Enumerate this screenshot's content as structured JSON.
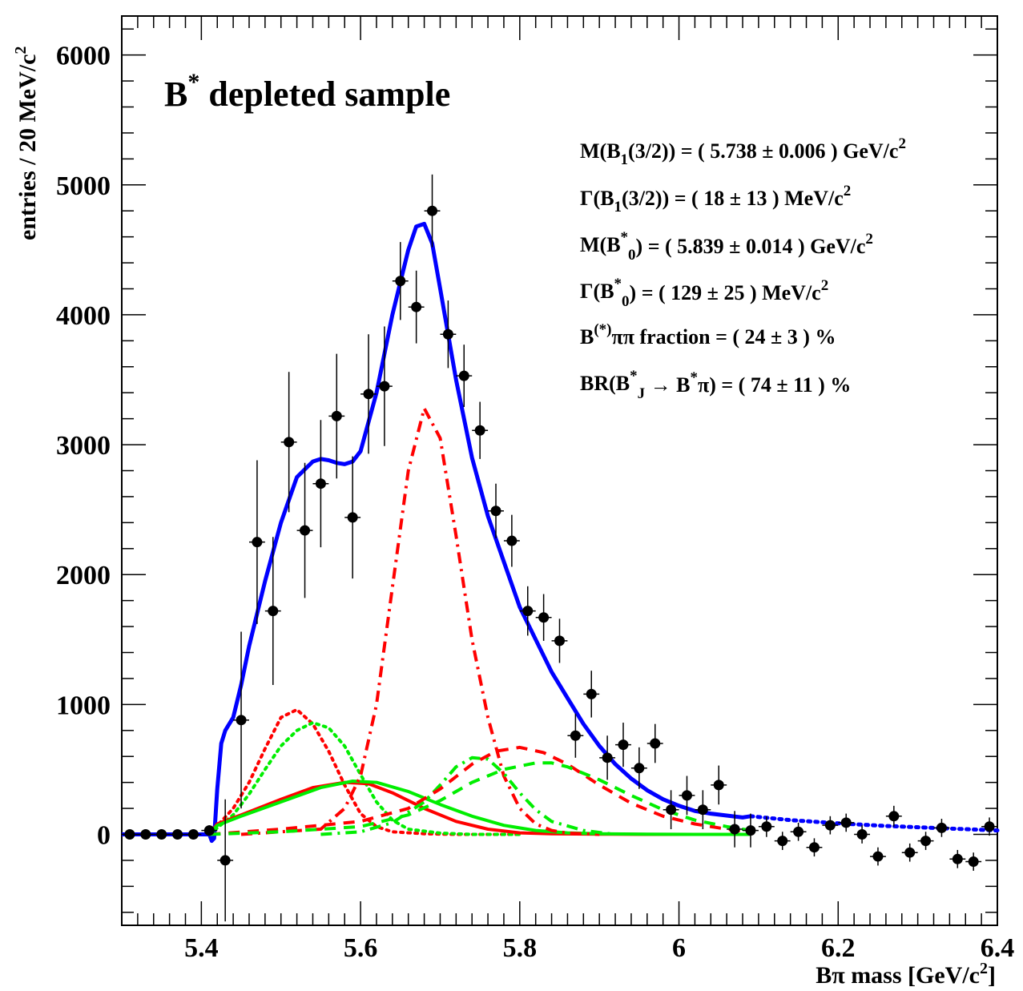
{
  "chart_data": {
    "type": "scatter",
    "title": "B",
    "title_sup": "*",
    "title_rest": " depleted sample",
    "xlabel": "Bπ mass [GeV/c",
    "xlabel_sup": "2",
    "xlabel_end": "]",
    "ylabel": "entries / 20 MeV/c",
    "ylabel_sup": "2",
    "xlim": [
      5.3,
      6.4
    ],
    "ylim": [
      -700,
      6300
    ],
    "x_ticks": [
      5.4,
      5.6,
      5.8,
      6,
      6.2,
      6.4
    ],
    "x_tick_labels": [
      "5.4",
      "5.6",
      "5.8",
      "6",
      "6.2",
      "6.4"
    ],
    "y_ticks": [
      0,
      1000,
      2000,
      3000,
      4000,
      5000,
      6000
    ],
    "y_tick_labels": [
      "0",
      "1000",
      "2000",
      "3000",
      "4000",
      "5000",
      "6000"
    ],
    "grid": false,
    "stats": [
      {
        "parts": [
          [
            "M(B",
            ""
          ],
          [
            "1",
            "sub"
          ],
          [
            "(3/2)) = ( 5.738 ± 0.006 ) GeV/c",
            ""
          ],
          [
            "2",
            "sup"
          ]
        ]
      },
      {
        "parts": [
          [
            "Γ(B",
            ""
          ],
          [
            "1",
            "sub"
          ],
          [
            "(3/2)) = ( 18 ± 13 ) MeV/c",
            ""
          ],
          [
            "2",
            "sup"
          ]
        ]
      },
      {
        "parts": [
          [
            "M(B",
            ""
          ],
          [
            "*",
            "sup"
          ],
          [
            "0",
            "sub"
          ],
          [
            ") = ( 5.839 ± 0.014 ) GeV/c",
            ""
          ],
          [
            "2",
            "sup"
          ]
        ]
      },
      {
        "parts": [
          [
            "Γ(B",
            ""
          ],
          [
            "*",
            "sup"
          ],
          [
            "0",
            "sub"
          ],
          [
            ") = ( 129 ± 25 ) MeV/c",
            ""
          ],
          [
            "2",
            "sup"
          ]
        ]
      },
      {
        "parts": [
          [
            "B",
            ""
          ],
          [
            "(*)",
            "sup"
          ],
          [
            "ππ fraction = ( 24 ± 3 ) %",
            ""
          ]
        ]
      },
      {
        "parts": [
          [
            "BR(B",
            ""
          ],
          [
            "*",
            "sup"
          ],
          [
            "J",
            "sub"
          ],
          [
            " → B",
            ""
          ],
          [
            "*",
            "sup"
          ],
          [
            "π) = ( 74 ± 11 ) %",
            ""
          ]
        ]
      }
    ],
    "data_points": {
      "x": [
        5.31,
        5.33,
        5.35,
        5.37,
        5.39,
        5.41,
        5.43,
        5.45,
        5.47,
        5.49,
        5.51,
        5.53,
        5.55,
        5.57,
        5.59,
        5.61,
        5.63,
        5.65,
        5.67,
        5.69,
        5.71,
        5.73,
        5.75,
        5.77,
        5.79,
        5.81,
        5.83,
        5.85,
        5.87,
        5.89,
        5.91,
        5.93,
        5.95,
        5.97,
        5.99,
        6.01,
        6.03,
        6.05,
        6.07,
        6.09,
        6.11,
        6.13,
        6.15,
        6.17,
        6.19,
        6.21,
        6.23,
        6.25,
        6.27,
        6.29,
        6.31,
        6.33,
        6.35,
        6.37,
        6.39
      ],
      "y": [
        0,
        0,
        0,
        0,
        0,
        30,
        -200,
        880,
        2250,
        1720,
        3020,
        2340,
        2700,
        3220,
        2440,
        3390,
        3450,
        4260,
        4060,
        4800,
        3850,
        3530,
        3110,
        2490,
        2260,
        1720,
        1670,
        1490,
        760,
        1080,
        590,
        690,
        510,
        700,
        190,
        300,
        190,
        380,
        40,
        30,
        60,
        -50,
        20,
        -100,
        70,
        90,
        0,
        -170,
        140,
        -140,
        -50,
        50,
        -190,
        -210,
        60
      ],
      "yerr": [
        0,
        0,
        0,
        0,
        0,
        40,
        470,
        680,
        630,
        570,
        540,
        520,
        490,
        480,
        470,
        460,
        460,
        300,
        280,
        280,
        260,
        240,
        220,
        210,
        200,
        190,
        180,
        170,
        170,
        180,
        170,
        170,
        160,
        150,
        150,
        150,
        150,
        150,
        140,
        130,
        80,
        70,
        70,
        70,
        70,
        70,
        70,
        70,
        80,
        70,
        70,
        70,
        70,
        70,
        70
      ]
    },
    "curves": [
      {
        "name": "total fit",
        "color": "#0000ff",
        "style": "solid",
        "x": [
          5.3,
          5.4,
          5.41,
          5.413,
          5.416,
          5.42,
          5.425,
          5.43,
          5.44,
          5.45,
          5.46,
          5.48,
          5.5,
          5.52,
          5.54,
          5.55,
          5.56,
          5.57,
          5.58,
          5.59,
          5.6,
          5.62,
          5.64,
          5.66,
          5.67,
          5.68,
          5.69,
          5.7,
          5.72,
          5.74,
          5.76,
          5.78,
          5.8,
          5.82,
          5.84,
          5.86,
          5.88,
          5.9,
          5.92,
          5.94,
          5.96,
          5.98,
          6.0,
          6.02,
          6.04,
          6.06,
          6.08,
          6.09
        ],
        "y": [
          0,
          0,
          0,
          -50,
          -30,
          350,
          700,
          800,
          900,
          1150,
          1450,
          1950,
          2400,
          2750,
          2870,
          2890,
          2880,
          2860,
          2850,
          2870,
          2950,
          3400,
          4000,
          4500,
          4680,
          4700,
          4550,
          4200,
          3500,
          2900,
          2450,
          2100,
          1750,
          1500,
          1250,
          1050,
          850,
          680,
          540,
          430,
          340,
          270,
          220,
          180,
          160,
          145,
          130,
          140
        ]
      },
      {
        "name": "dotted tail",
        "color": "#0000ff",
        "style": "dotted",
        "x": [
          6.09,
          6.14,
          6.2,
          6.26,
          6.32,
          6.38,
          6.4
        ],
        "y": [
          140,
          110,
          85,
          65,
          50,
          35,
          30
        ]
      },
      {
        "name": "red dotted",
        "color": "#ff0000",
        "style": "dotted",
        "x": [
          5.41,
          5.44,
          5.46,
          5.48,
          5.5,
          5.52,
          5.54,
          5.56,
          5.58,
          5.6,
          5.62,
          5.64,
          5.68,
          5.72,
          5.76,
          5.8
        ],
        "y": [
          0,
          200,
          400,
          660,
          900,
          960,
          850,
          640,
          380,
          160,
          60,
          20,
          5,
          0,
          0,
          0
        ]
      },
      {
        "name": "green dotted",
        "color": "#00ee00",
        "style": "dotted",
        "x": [
          5.41,
          5.44,
          5.46,
          5.48,
          5.5,
          5.52,
          5.54,
          5.56,
          5.58,
          5.6,
          5.62,
          5.64,
          5.66,
          5.7,
          5.74,
          5.8
        ],
        "y": [
          0,
          150,
          310,
          500,
          680,
          800,
          860,
          820,
          680,
          460,
          250,
          110,
          40,
          10,
          0,
          0
        ]
      },
      {
        "name": "red solid",
        "color": "#ff0000",
        "style": "solid",
        "x": [
          5.41,
          5.42,
          5.45,
          5.5,
          5.54,
          5.58,
          5.61,
          5.64,
          5.68,
          5.72,
          5.76,
          5.8,
          5.84,
          5.9,
          5.96,
          6.02,
          6.09
        ],
        "y": [
          0,
          80,
          150,
          270,
          360,
          400,
          390,
          320,
          200,
          100,
          40,
          12,
          5,
          2,
          0,
          0,
          0
        ]
      },
      {
        "name": "green solid",
        "color": "#00ee00",
        "style": "solid",
        "x": [
          5.41,
          5.42,
          5.45,
          5.5,
          5.55,
          5.59,
          5.62,
          5.66,
          5.7,
          5.74,
          5.78,
          5.82,
          5.86,
          5.9,
          5.96,
          6.02,
          6.09
        ],
        "y": [
          0,
          70,
          140,
          250,
          360,
          410,
          400,
          330,
          230,
          140,
          70,
          30,
          12,
          5,
          2,
          0,
          0
        ]
      },
      {
        "name": "red dash-dot",
        "color": "#ff0000",
        "style": "dashdot",
        "x": [
          5.45,
          5.55,
          5.58,
          5.6,
          5.62,
          5.64,
          5.66,
          5.68,
          5.7,
          5.72,
          5.74,
          5.76,
          5.78,
          5.8,
          5.82,
          5.84,
          5.86,
          5.9
        ],
        "y": [
          0,
          40,
          200,
          450,
          1000,
          1900,
          2800,
          3280,
          3050,
          2300,
          1500,
          900,
          450,
          200,
          80,
          30,
          10,
          0
        ]
      },
      {
        "name": "green dash-dot",
        "color": "#00ee00",
        "style": "dashdot",
        "x": [
          5.55,
          5.6,
          5.64,
          5.68,
          5.7,
          5.72,
          5.74,
          5.76,
          5.78,
          5.8,
          5.82,
          5.84,
          5.88,
          5.92
        ],
        "y": [
          0,
          20,
          90,
          250,
          380,
          520,
          590,
          580,
          470,
          320,
          190,
          100,
          30,
          0
        ]
      },
      {
        "name": "red dashed",
        "color": "#ff0000",
        "style": "dashed",
        "x": [
          5.41,
          5.5,
          5.6,
          5.66,
          5.7,
          5.74,
          5.77,
          5.8,
          5.83,
          5.86,
          5.9,
          5.94,
          5.98,
          6.02,
          6.06,
          6.09
        ],
        "y": [
          0,
          40,
          100,
          200,
          350,
          540,
          640,
          670,
          630,
          540,
          380,
          240,
          140,
          80,
          40,
          20
        ]
      },
      {
        "name": "green dashed",
        "color": "#00ee00",
        "style": "dashed",
        "x": [
          5.41,
          5.5,
          5.6,
          5.66,
          5.7,
          5.74,
          5.78,
          5.82,
          5.84,
          5.86,
          5.9,
          5.94,
          5.98,
          6.02,
          6.06,
          6.09
        ],
        "y": [
          0,
          20,
          60,
          150,
          260,
          400,
          500,
          550,
          550,
          520,
          420,
          300,
          190,
          110,
          60,
          30
        ]
      }
    ]
  }
}
